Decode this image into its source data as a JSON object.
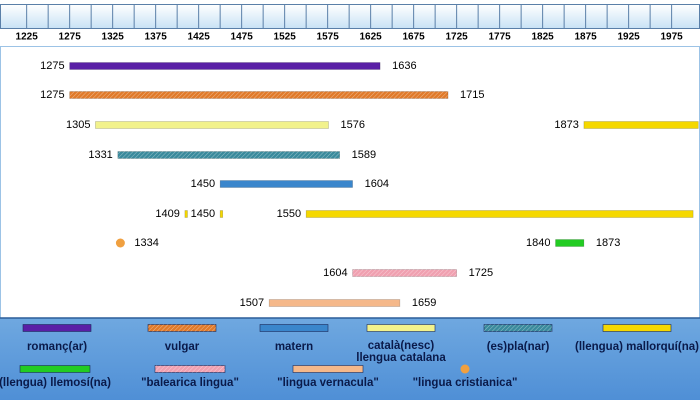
{
  "chart_data": {
    "type": "timeline",
    "xlim": [
      1194,
      2008
    ],
    "xticks": [
      1225,
      1275,
      1325,
      1375,
      1425,
      1475,
      1525,
      1575,
      1625,
      1675,
      1725,
      1775,
      1825,
      1875,
      1925,
      1975
    ],
    "series": [
      {
        "name": "romanç(ar)",
        "color": "#5a1fa6",
        "bars": [
          {
            "start": 1275,
            "end": 1636
          }
        ]
      },
      {
        "name": "vulgar",
        "color": "#e07a2a",
        "hatch": true,
        "bars": [
          {
            "start": 1275,
            "end": 1715
          }
        ]
      },
      {
        "name": "matern",
        "color": "#3a86cc",
        "bars": [
          {
            "start": 1450,
            "end": 1604
          }
        ]
      },
      {
        "name": "català(nesc) llengua catalana",
        "color": "#f2f28c",
        "bars": [
          {
            "start": 1305,
            "end": 1576
          }
        ]
      },
      {
        "name": "(es)pla(nar)",
        "color": "#3a8a9c",
        "hatch": true,
        "bars": [
          {
            "start": 1331,
            "end": 1589
          }
        ]
      },
      {
        "name": "(llengua) mallorquí(na)",
        "color": "#f5d800",
        "bars": [
          {
            "start": 1873,
            "end": 2006
          },
          {
            "start": 1409,
            "end": 1412
          },
          {
            "start": 1450,
            "end": 1453
          },
          {
            "start": 1550,
            "end": 2000
          }
        ]
      },
      {
        "name": "(llengua) llemosí(na)",
        "color": "#22cc22",
        "bars": [
          {
            "start": 1840,
            "end": 1873
          }
        ]
      },
      {
        "name": "\"balearica lingua\"",
        "color": "#f0a0b0",
        "hatch": true,
        "bars": [
          {
            "start": 1604,
            "end": 1725
          }
        ]
      },
      {
        "name": "\"lingua vernacula\"",
        "color": "#f5b88a",
        "bars": [
          {
            "start": 1507,
            "end": 1659
          }
        ]
      },
      {
        "name": "\"lingua cristianica\"",
        "color": "#f0a040",
        "marker": "circle",
        "bars": [
          {
            "start": 1334
          }
        ]
      }
    ]
  }
}
